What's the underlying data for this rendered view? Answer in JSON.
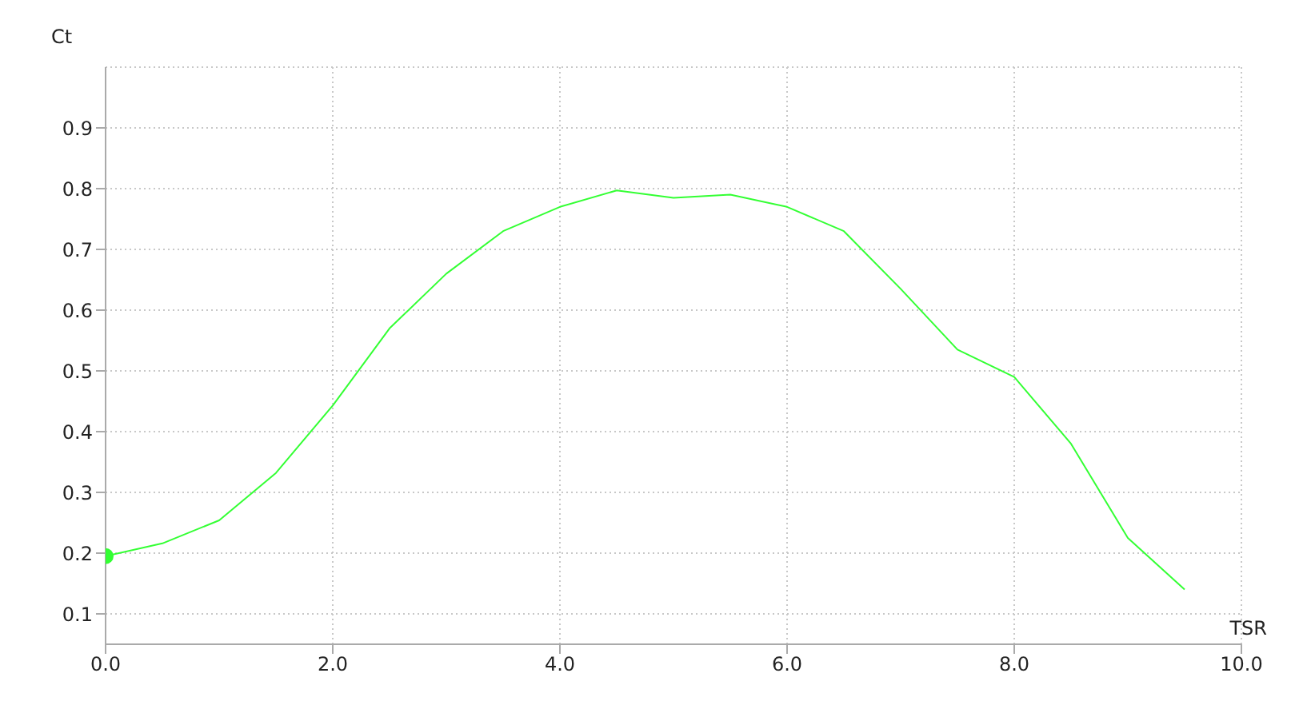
{
  "chart_data": {
    "type": "line",
    "xlabel": "TSR",
    "ylabel": "Ct",
    "x": [
      0,
      0.5,
      1,
      1.5,
      2,
      2.5,
      3,
      3.5,
      4,
      4.5,
      5,
      5.5,
      6,
      6.5,
      7,
      7.5,
      8,
      8.5,
      9,
      9.5
    ],
    "series": [
      {
        "color": "#33ff33",
        "marker": "none",
        "values": [
          0.195,
          0.216,
          0.254,
          0.332,
          0.443,
          0.57,
          0.66,
          0.73,
          0.77,
          0.797,
          0.785,
          0.79,
          0.77,
          0.73,
          0.635,
          0.535,
          0.49,
          0.38,
          0.225,
          0.14
        ]
      },
      {
        "type": "scatter",
        "marker": "circle",
        "color": "#33ff33",
        "x": [
          0
        ],
        "values": [
          0.195
        ]
      }
    ],
    "xlim": [
      0,
      10
    ],
    "xticks": [
      {
        "value": 0,
        "label": "0.0"
      },
      {
        "value": 2,
        "label": "2.0"
      },
      {
        "value": 4,
        "label": "4.0"
      },
      {
        "value": 6,
        "label": "6.0"
      },
      {
        "value": 8,
        "label": "8.0"
      },
      {
        "value": 10,
        "label": "10.0"
      }
    ],
    "ylim": [
      0.05,
      1.0
    ],
    "yticks": [
      0.1,
      0.2,
      0.3,
      0.4,
      0.5,
      0.6,
      0.7,
      0.8,
      0.9
    ],
    "grid": true,
    "line_style": "solid"
  }
}
